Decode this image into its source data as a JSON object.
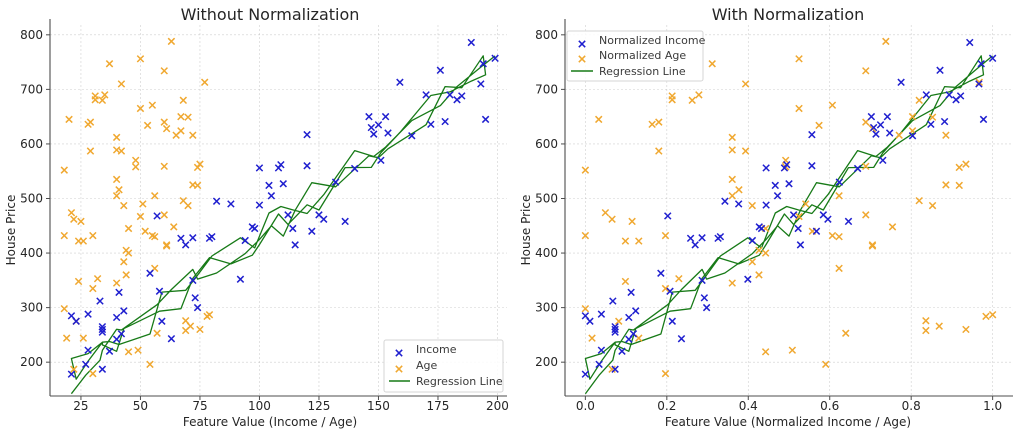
{
  "colors": {
    "income": "#1f1fcf",
    "age": "#f0a830",
    "regression": "#177a17",
    "text": "#262626"
  },
  "chart_data": [
    {
      "type": "scatter",
      "title": "Without Normalization",
      "xlabel": "Feature Value (Income / Age)",
      "ylabel": "House Price",
      "xlim": [
        12,
        204
      ],
      "ylim": [
        138,
        818
      ],
      "xticks": [
        25,
        50,
        75,
        100,
        125,
        150,
        175,
        200
      ],
      "xtick_labels": [
        "25",
        "50",
        "75",
        "100",
        "125",
        "150",
        "175",
        "200"
      ],
      "yticks": [
        200,
        300,
        400,
        500,
        600,
        700,
        800
      ],
      "ytick_labels": [
        "200",
        "300",
        "400",
        "500",
        "600",
        "700",
        "800"
      ],
      "grid": true,
      "legend_position": "lower-right",
      "legend": [
        "Income",
        "Age",
        "Regression Line"
      ],
      "series": [
        {
          "name": "Income",
          "marker": "x",
          "points": [
            [
              21,
              178
            ],
            [
              21,
              285
            ],
            [
              23,
              275
            ],
            [
              27,
              196
            ],
            [
              28,
              222
            ],
            [
              28,
              288
            ],
            [
              33,
              312
            ],
            [
              34,
              187
            ],
            [
              34,
              255
            ],
            [
              34,
              260
            ],
            [
              34,
              265
            ],
            [
              37,
              220
            ],
            [
              40,
              242
            ],
            [
              40,
              282
            ],
            [
              41,
              328
            ],
            [
              42,
              252
            ],
            [
              43,
              294
            ],
            [
              54,
              363
            ],
            [
              57,
              468
            ],
            [
              58,
              330
            ],
            [
              59,
              275
            ],
            [
              63,
              243
            ],
            [
              67,
              427
            ],
            [
              69,
              415
            ],
            [
              72,
              428
            ],
            [
              72,
              350
            ],
            [
              73,
              318
            ],
            [
              74,
              300
            ],
            [
              79,
              427
            ],
            [
              80,
              430
            ],
            [
              82,
              495
            ],
            [
              88,
              490
            ],
            [
              92,
              352
            ],
            [
              94,
              423
            ],
            [
              97,
              448
            ],
            [
              98,
              445
            ],
            [
              100,
              556
            ],
            [
              100,
              488
            ],
            [
              104,
              524
            ],
            [
              105,
              505
            ],
            [
              108,
              556
            ],
            [
              109,
              562
            ],
            [
              110,
              527
            ],
            [
              112,
              470
            ],
            [
              114,
              445
            ],
            [
              115,
              415
            ],
            [
              120,
              617
            ],
            [
              120,
              560
            ],
            [
              122,
              440
            ],
            [
              125,
              470
            ],
            [
              127,
              462
            ],
            [
              132,
              530
            ],
            [
              136,
              458
            ],
            [
              140,
              555
            ],
            [
              146,
              650
            ],
            [
              147,
              630
            ],
            [
              148,
              618
            ],
            [
              150,
              635
            ],
            [
              151,
              570
            ],
            [
              153,
              650
            ],
            [
              154,
              620
            ],
            [
              159,
              713
            ],
            [
              164,
              615
            ],
            [
              170,
              690
            ],
            [
              172,
              636
            ],
            [
              176,
              735
            ],
            [
              178,
              641
            ],
            [
              180,
              690
            ],
            [
              183,
              681
            ],
            [
              185,
              688
            ],
            [
              189,
              786
            ],
            [
              193,
              710
            ],
            [
              194,
              747
            ],
            [
              195,
              645
            ],
            [
              199,
              757
            ]
          ]
        },
        {
          "name": "Age",
          "marker": "x",
          "points": [
            [
              18,
              552
            ],
            [
              18,
              432
            ],
            [
              18,
              298
            ],
            [
              19,
              244
            ],
            [
              20,
              645
            ],
            [
              21,
              474
            ],
            [
              22,
              462
            ],
            [
              22,
              187
            ],
            [
              23,
              275
            ],
            [
              24,
              348
            ],
            [
              24,
              422
            ],
            [
              25,
              458
            ],
            [
              26,
              422
            ],
            [
              26,
              244
            ],
            [
              28,
              636
            ],
            [
              29,
              640
            ],
            [
              29,
              587
            ],
            [
              30,
              432
            ],
            [
              30,
              179
            ],
            [
              30,
              335
            ],
            [
              31,
              688
            ],
            [
              31,
              681
            ],
            [
              32,
              353
            ],
            [
              34,
              680
            ],
            [
              35,
              690
            ],
            [
              37,
              747
            ],
            [
              40,
              612
            ],
            [
              40,
              589
            ],
            [
              40,
              535
            ],
            [
              40,
              505
            ],
            [
              40,
              345
            ],
            [
              41,
              516
            ],
            [
              42,
              587
            ],
            [
              42,
              710
            ],
            [
              43,
              487
            ],
            [
              43,
              384
            ],
            [
              44,
              405
            ],
            [
              44,
              360
            ],
            [
              45,
              219
            ],
            [
              45,
              400
            ],
            [
              45,
              445
            ],
            [
              48,
              570
            ],
            [
              48,
              558
            ],
            [
              49,
              222
            ],
            [
              50,
              756
            ],
            [
              50,
              665
            ],
            [
              50,
              467
            ],
            [
              51,
              490
            ],
            [
              52,
              440
            ],
            [
              53,
              634
            ],
            [
              54,
              196
            ],
            [
              55,
              671
            ],
            [
              55,
              432
            ],
            [
              56,
              505
            ],
            [
              56,
              372
            ],
            [
              56,
              430
            ],
            [
              57,
              253
            ],
            [
              60,
              734
            ],
            [
              60,
              640
            ],
            [
              60,
              559
            ],
            [
              60,
              470
            ],
            [
              61,
              628
            ],
            [
              61,
              413
            ],
            [
              61,
              415
            ],
            [
              63,
              788
            ],
            [
              64,
              448
            ],
            [
              65,
              616
            ],
            [
              67,
              624
            ],
            [
              67,
              650
            ],
            [
              68,
              496
            ],
            [
              68,
              680
            ],
            [
              69,
              276
            ],
            [
              69,
              258
            ],
            [
              70,
              649
            ],
            [
              70,
              487
            ],
            [
              71,
              266
            ],
            [
              72,
              616
            ],
            [
              72,
              525
            ],
            [
              74,
              524
            ],
            [
              74,
              557
            ],
            [
              75,
              563
            ],
            [
              75,
              260
            ],
            [
              77,
              713
            ],
            [
              78,
              284
            ],
            [
              79,
              287
            ]
          ]
        },
        {
          "name": "Regression Line",
          "type": "line",
          "description": "noisy regression polyline, Price ≈ 3.2·Income + 110 (rendered as jittered connected segments)",
          "slope": 3.2,
          "intercept": 110
        }
      ]
    },
    {
      "type": "scatter",
      "title": "With Normalization",
      "xlabel": "Feature Value (Normalized Income / Age)",
      "ylabel": "House Price",
      "xlim": [
        -0.05,
        1.05
      ],
      "ylim": [
        138,
        818
      ],
      "xticks": [
        0.0,
        0.2,
        0.4,
        0.6,
        0.8,
        1.0
      ],
      "xtick_labels": [
        "0.0",
        "0.2",
        "0.4",
        "0.6",
        "0.8",
        "1.0"
      ],
      "yticks": [
        200,
        300,
        400,
        500,
        600,
        700,
        800
      ],
      "ytick_labels": [
        "200",
        "300",
        "400",
        "500",
        "600",
        "700",
        "800"
      ],
      "grid": true,
      "legend_position": "upper-left",
      "legend": [
        "Normalized Income",
        "Normalized Age",
        "Regression Line"
      ],
      "normalization": {
        "income_min": 21,
        "income_max": 199,
        "age_min": 18,
        "age_max": 79
      },
      "series": [
        {
          "name": "Normalized Income",
          "marker": "x",
          "derived_from": "Income"
        },
        {
          "name": "Normalized Age",
          "marker": "x",
          "derived_from": "Age"
        },
        {
          "name": "Regression Line",
          "type": "line",
          "derived_from": "Regression Line"
        }
      ]
    }
  ]
}
